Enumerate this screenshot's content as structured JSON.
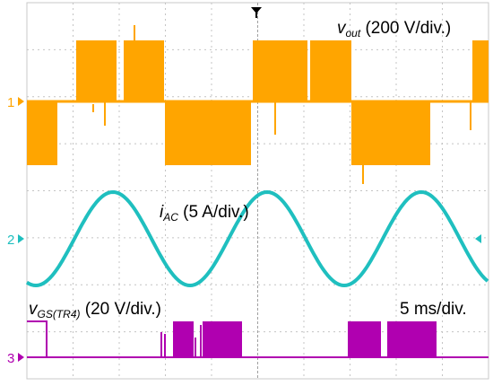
{
  "chart_data": {
    "type": "line",
    "time_scale": "5 ms/div.",
    "grid": true,
    "trigger_marker": "down-arrow-top",
    "channels": [
      {
        "id": "1",
        "label_main": "v",
        "label_sub": "out",
        "label_scale": " (200 V/div.)",
        "color": "#FFA500",
        "waveform": "multilevel-pwm-voltage",
        "levels_div": [
          -1,
          0,
          1
        ]
      },
      {
        "id": "2",
        "label_main": "i",
        "label_sub": "AC",
        "label_scale": " (5 A/div.)",
        "color": "#1FBFBF",
        "waveform": "sine",
        "amplitude_div": 1.2,
        "periods_visible": 2.5
      },
      {
        "id": "3",
        "label_main": "v",
        "label_sub": "GS(TR4)",
        "label_scale": " (20 V/div.)",
        "color": "#B000B0",
        "waveform": "gate-pulses",
        "levels_div": [
          0,
          0.45
        ]
      }
    ]
  }
}
